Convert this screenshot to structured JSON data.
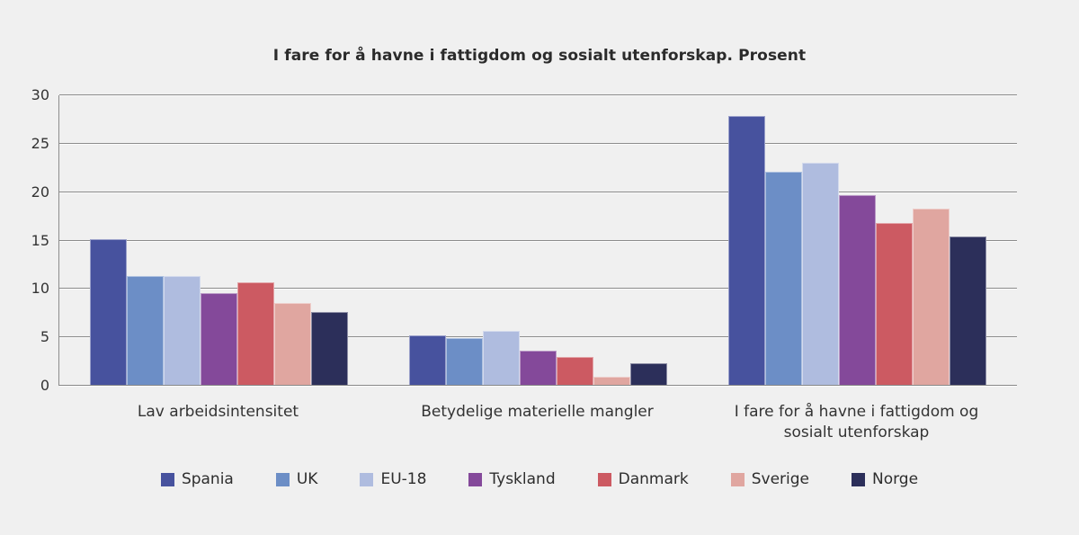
{
  "chart_data": {
    "type": "bar",
    "title": "I fare for å havne i fattigdom og sosialt utenforskap. Prosent",
    "categories": [
      "Lav arbeidsintensitet",
      "Betydelige materielle mangler",
      "I fare for å havne i fattigdom og sosialt utenforskap"
    ],
    "series": [
      {
        "name": "Spania",
        "color": "#47529E",
        "values": [
          15.1,
          5.2,
          27.9
        ]
      },
      {
        "name": "UK",
        "color": "#6C8EC6",
        "values": [
          11.3,
          4.9,
          22.1
        ]
      },
      {
        "name": "EU-18",
        "color": "#AFBCDF",
        "values": [
          11.3,
          5.7,
          23.0
        ]
      },
      {
        "name": "Tyskland",
        "color": "#84499A",
        "values": [
          9.6,
          3.6,
          19.7
        ]
      },
      {
        "name": "Danmark",
        "color": "#CC5A62",
        "values": [
          10.7,
          3.0,
          16.8
        ]
      },
      {
        "name": "Sverige",
        "color": "#E0A6A0",
        "values": [
          8.5,
          0.9,
          18.3
        ]
      },
      {
        "name": "Norge",
        "color": "#2C2F5A",
        "values": [
          7.6,
          2.3,
          15.4
        ]
      }
    ],
    "ylabel": "",
    "xlabel": "",
    "ylim": [
      0,
      30
    ],
    "yticks": [
      0,
      5,
      10,
      15,
      20,
      25,
      30
    ],
    "grid": true,
    "legend_position": "bottom"
  },
  "colors": {
    "background": "#F0F0F0",
    "gridline": "#8C8C8C",
    "text": "#2D2D2D"
  }
}
